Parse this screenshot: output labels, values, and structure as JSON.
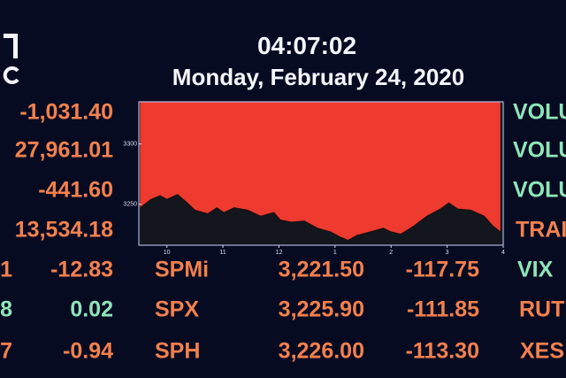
{
  "header": {
    "time": "04:07:02",
    "date": "Monday, February 24, 2020"
  },
  "left_column": [
    "-1,031.40",
    "27,961.01",
    "-441.60",
    "13,534.18"
  ],
  "right_column": [
    "VOLU",
    "VOLU",
    "VOLU",
    "TRAI"
  ],
  "table": {
    "rows": [
      [
        "1",
        "-12.83",
        "SPMi",
        "3,221.50",
        "-117.75",
        "VIX"
      ],
      [
        "8",
        "0.02",
        "SPX",
        "3,225.90",
        "-111.85",
        "RUT"
      ],
      [
        "7",
        "-0.94",
        "SPH",
        "3,226.00",
        "-113.30",
        "XES"
      ]
    ]
  },
  "chart_data": {
    "type": "area",
    "color": "#ee3a2f",
    "x": [
      9.52,
      9.72,
      9.88,
      10.0,
      10.19,
      10.34,
      10.5,
      10.73,
      10.89,
      11.02,
      11.2,
      11.44,
      11.67,
      11.91,
      12.02,
      12.22,
      12.45,
      12.69,
      12.92,
      13.08,
      13.23,
      13.39,
      13.63,
      13.86,
      14.0,
      14.17,
      14.41,
      14.64,
      14.88,
      15.03,
      15.19,
      15.42,
      15.66,
      15.81,
      15.95
    ],
    "values": [
      3247,
      3254,
      3257,
      3254,
      3258,
      3252,
      3245,
      3242,
      3247,
      3243,
      3247,
      3245,
      3240,
      3243,
      3237,
      3235,
      3236,
      3230,
      3227,
      3223,
      3220,
      3224,
      3227,
      3230,
      3227,
      3225,
      3232,
      3240,
      3246,
      3251,
      3246,
      3245,
      3240,
      3232,
      3227
    ],
    "xlim": [
      9.5,
      16
    ],
    "xticks": [
      10,
      11,
      12,
      {
        "value": 13,
        "label": "1"
      },
      {
        "value": 14,
        "label": "2"
      },
      {
        "value": 15,
        "label": "3"
      },
      {
        "value": 16,
        "label": "4"
      }
    ],
    "ylim": [
      3216,
      3335
    ],
    "yticks": [
      3250,
      3300
    ]
  }
}
